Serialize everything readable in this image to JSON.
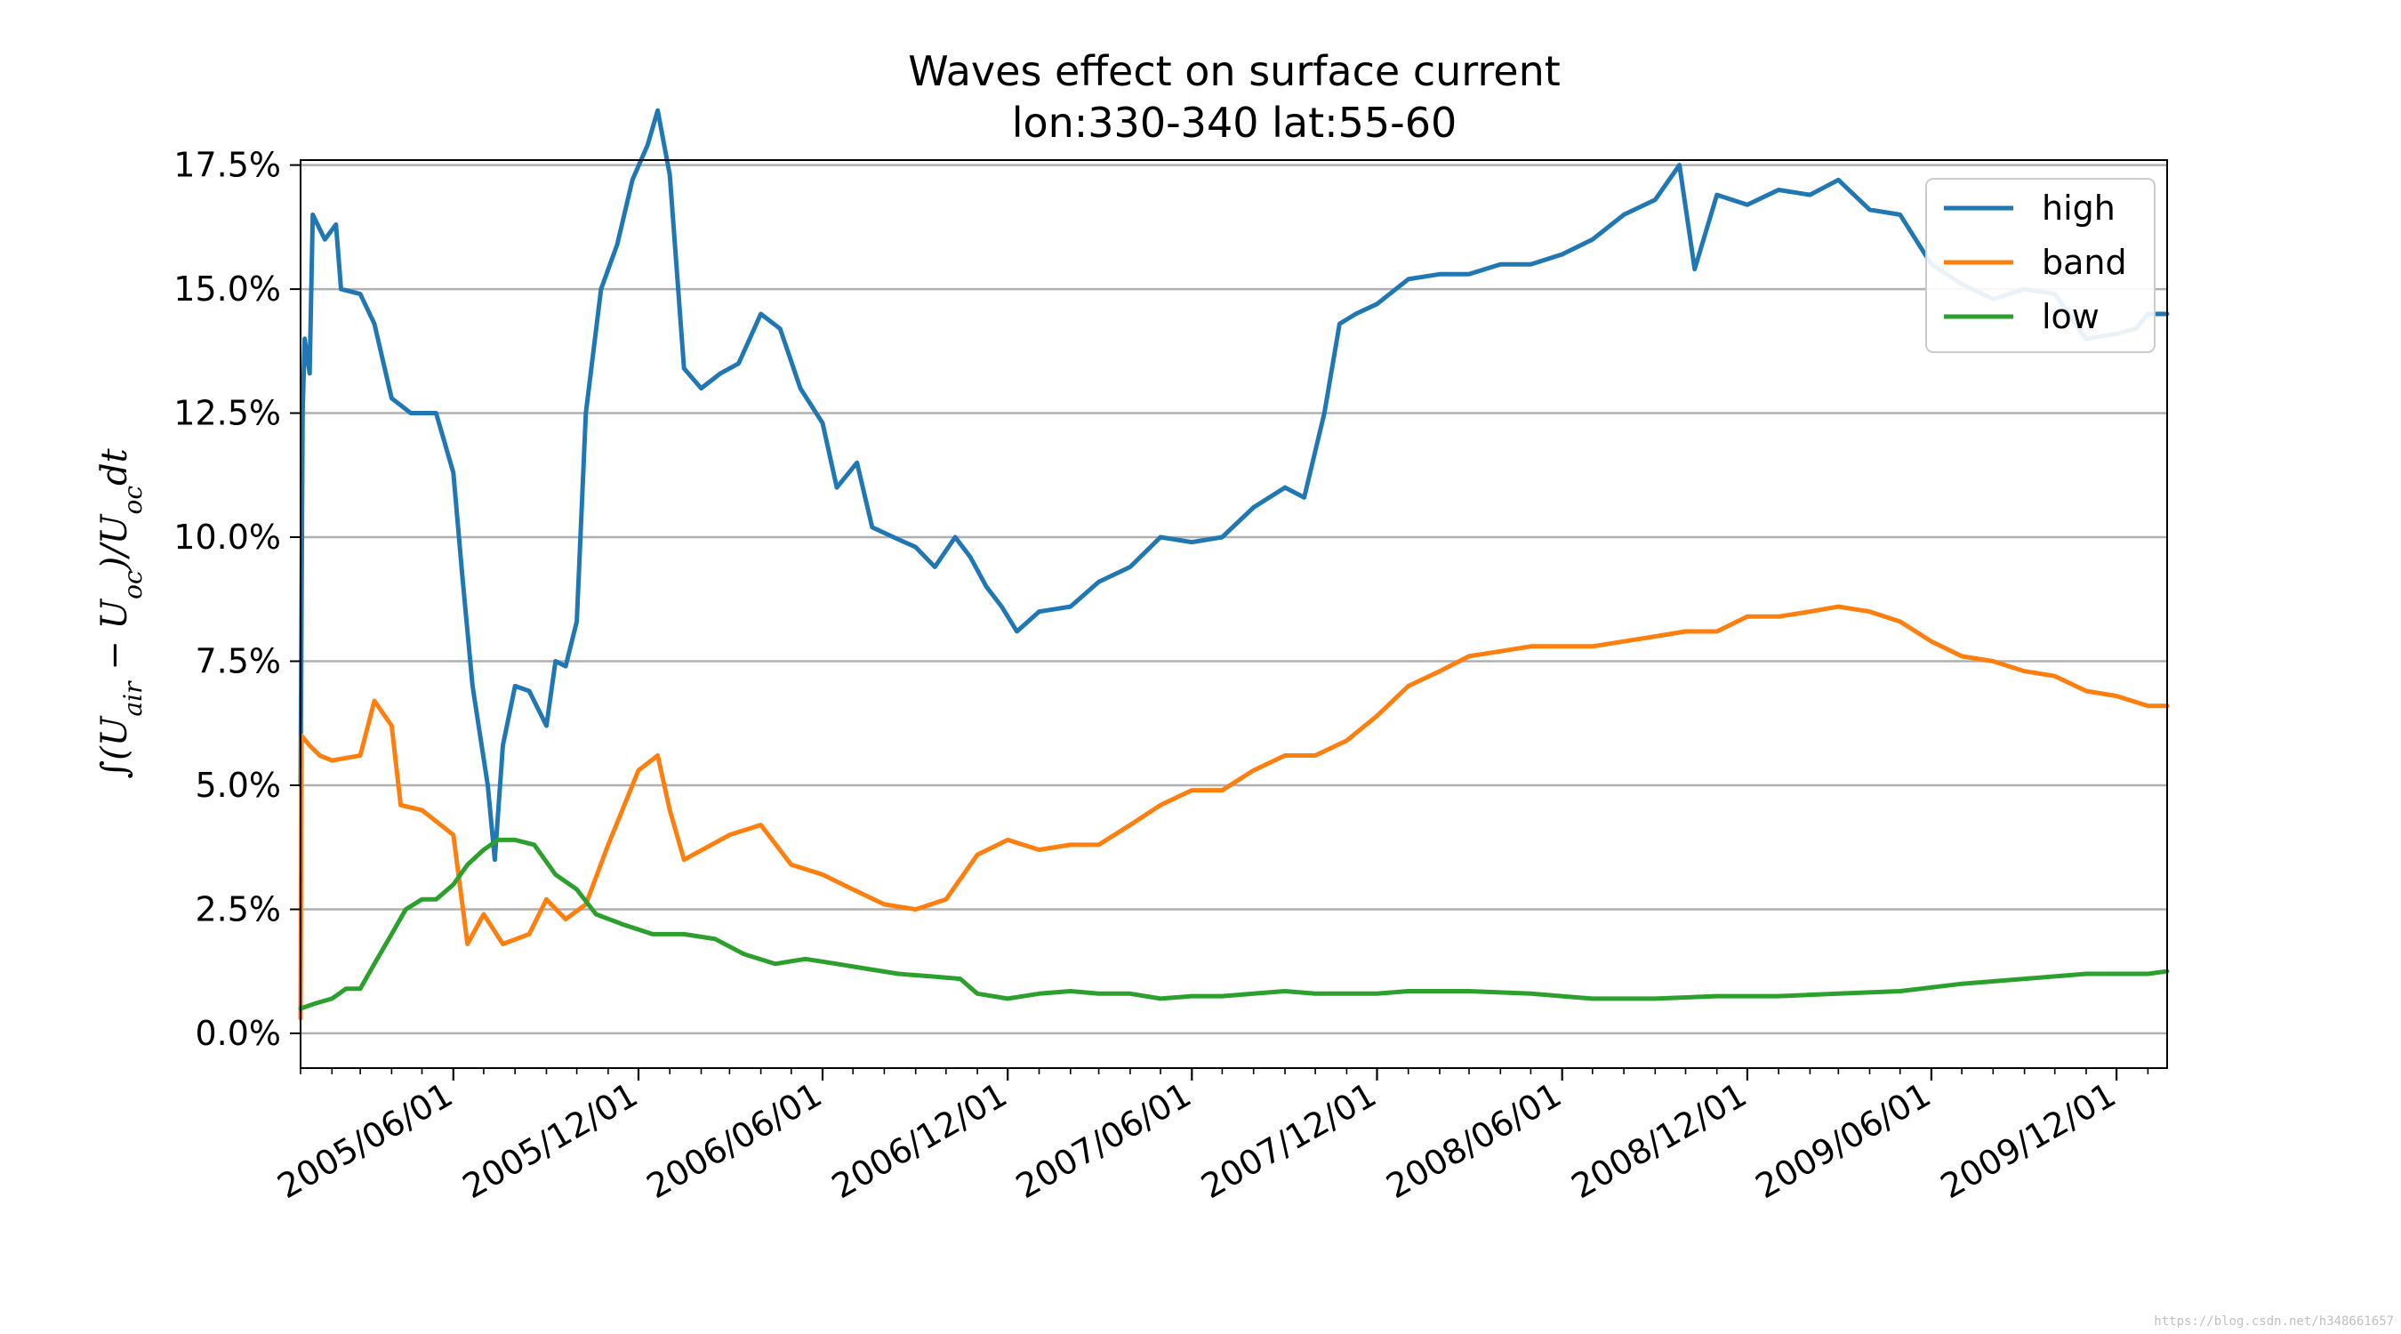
{
  "chart_data": {
    "type": "line",
    "title": "Waves effect on surface current",
    "subtitle": "lon:330-340 lat:55-60",
    "xlabel": "",
    "ylabel": "∫(U_air − U_oc)/U_oc dt",
    "ylabel_parts": {
      "integral": "∫(",
      "u1": "U",
      "sub1": "air",
      "minus": " − ",
      "u2": "U",
      "sub2": "oc",
      "close": ")/",
      "u3": "U",
      "sub3": "oc",
      "dt": "dt"
    },
    "x_range": [
      "2005-01-01",
      "2010-01-20"
    ],
    "y_range": [
      -0.7,
      17.6
    ],
    "y_unit": "%",
    "y_ticks": [
      0.0,
      2.5,
      5.0,
      7.5,
      10.0,
      12.5,
      15.0,
      17.5
    ],
    "y_tick_labels": [
      "0.0%",
      "2.5%",
      "5.0%",
      "7.5%",
      "10.0%",
      "12.5%",
      "15.0%",
      "17.5%"
    ],
    "x_ticks": [
      "2005-06-01",
      "2005-12-01",
      "2006-06-01",
      "2006-12-01",
      "2007-06-01",
      "2007-12-01",
      "2008-06-01",
      "2008-12-01",
      "2009-06-01",
      "2009-12-01"
    ],
    "x_tick_labels": [
      "2005/06/01",
      "2005/12/01",
      "2006/06/01",
      "2006/12/01",
      "2007/06/01",
      "2007/12/01",
      "2008/06/01",
      "2008/12/01",
      "2009/06/01",
      "2009/12/01"
    ],
    "grid": "horizontal",
    "legend_position": "top-right",
    "series": [
      {
        "name": "high",
        "color": "#1f77b4",
        "points": [
          [
            "2005-01-01",
            5.0
          ],
          [
            "2005-01-03",
            12.5
          ],
          [
            "2005-01-05",
            14.0
          ],
          [
            "2005-01-10",
            13.3
          ],
          [
            "2005-01-13",
            16.5
          ],
          [
            "2005-01-25",
            16.0
          ],
          [
            "2005-02-05",
            16.3
          ],
          [
            "2005-02-10",
            15.0
          ],
          [
            "2005-03-01",
            14.9
          ],
          [
            "2005-03-15",
            14.3
          ],
          [
            "2005-04-01",
            12.8
          ],
          [
            "2005-04-20",
            12.5
          ],
          [
            "2005-05-15",
            12.5
          ],
          [
            "2005-06-01",
            11.3
          ],
          [
            "2005-06-10",
            9.2
          ],
          [
            "2005-06-20",
            7.0
          ],
          [
            "2005-07-05",
            5.0
          ],
          [
            "2005-07-12",
            3.5
          ],
          [
            "2005-07-20",
            5.8
          ],
          [
            "2005-08-01",
            7.0
          ],
          [
            "2005-08-15",
            6.9
          ],
          [
            "2005-09-01",
            6.2
          ],
          [
            "2005-09-10",
            7.5
          ],
          [
            "2005-09-20",
            7.4
          ],
          [
            "2005-10-01",
            8.3
          ],
          [
            "2005-10-10",
            12.5
          ],
          [
            "2005-10-25",
            15.0
          ],
          [
            "2005-11-10",
            15.9
          ],
          [
            "2005-11-25",
            17.2
          ],
          [
            "2005-12-10",
            17.9
          ],
          [
            "2005-12-20",
            18.6
          ],
          [
            "2006-01-01",
            17.3
          ],
          [
            "2006-01-15",
            13.4
          ],
          [
            "2006-02-01",
            13.0
          ],
          [
            "2006-02-20",
            13.3
          ],
          [
            "2006-03-10",
            13.5
          ],
          [
            "2006-04-01",
            14.5
          ],
          [
            "2006-04-20",
            14.2
          ],
          [
            "2006-05-10",
            13.0
          ],
          [
            "2006-06-01",
            12.3
          ],
          [
            "2006-06-15",
            11.0
          ],
          [
            "2006-07-05",
            11.5
          ],
          [
            "2006-07-20",
            10.2
          ],
          [
            "2006-08-10",
            10.0
          ],
          [
            "2006-09-01",
            9.8
          ],
          [
            "2006-09-20",
            9.4
          ],
          [
            "2006-10-10",
            10.0
          ],
          [
            "2006-10-25",
            9.6
          ],
          [
            "2006-11-10",
            9.0
          ],
          [
            "2006-11-25",
            8.6
          ],
          [
            "2006-12-10",
            8.1
          ],
          [
            "2007-01-01",
            8.5
          ],
          [
            "2007-02-01",
            8.6
          ],
          [
            "2007-03-01",
            9.1
          ],
          [
            "2007-04-01",
            9.4
          ],
          [
            "2007-05-01",
            10.0
          ],
          [
            "2007-06-01",
            9.9
          ],
          [
            "2007-07-01",
            10.0
          ],
          [
            "2007-08-01",
            10.6
          ],
          [
            "2007-09-01",
            11.0
          ],
          [
            "2007-09-20",
            10.8
          ],
          [
            "2007-10-10",
            12.5
          ],
          [
            "2007-10-25",
            14.3
          ],
          [
            "2007-11-10",
            14.5
          ],
          [
            "2007-12-01",
            14.7
          ],
          [
            "2008-01-01",
            15.2
          ],
          [
            "2008-02-01",
            15.3
          ],
          [
            "2008-03-01",
            15.3
          ],
          [
            "2008-04-01",
            15.5
          ],
          [
            "2008-05-01",
            15.5
          ],
          [
            "2008-06-01",
            15.7
          ],
          [
            "2008-07-01",
            16.0
          ],
          [
            "2008-08-01",
            16.5
          ],
          [
            "2008-09-01",
            16.8
          ],
          [
            "2008-09-25",
            17.5
          ],
          [
            "2008-10-10",
            15.4
          ],
          [
            "2008-11-01",
            16.9
          ],
          [
            "2008-12-01",
            16.7
          ],
          [
            "2009-01-01",
            17.0
          ],
          [
            "2009-02-01",
            16.9
          ],
          [
            "2009-03-01",
            17.2
          ],
          [
            "2009-04-01",
            16.6
          ],
          [
            "2009-05-01",
            16.5
          ],
          [
            "2009-06-01",
            15.5
          ],
          [
            "2009-07-01",
            15.1
          ],
          [
            "2009-08-01",
            14.8
          ],
          [
            "2009-09-01",
            15.0
          ],
          [
            "2009-10-01",
            14.9
          ],
          [
            "2009-11-01",
            14.0
          ],
          [
            "2009-12-01",
            14.1
          ],
          [
            "2009-12-20",
            14.2
          ],
          [
            "2010-01-01",
            14.5
          ],
          [
            "2010-01-20",
            14.5
          ]
        ]
      },
      {
        "name": "band",
        "color": "#ff7f0e",
        "points": [
          [
            "2005-01-01",
            0.3
          ],
          [
            "2005-01-02",
            6.0
          ],
          [
            "2005-01-10",
            5.8
          ],
          [
            "2005-01-20",
            5.6
          ],
          [
            "2005-02-01",
            5.5
          ],
          [
            "2005-03-01",
            5.6
          ],
          [
            "2005-03-15",
            6.7
          ],
          [
            "2005-04-01",
            6.2
          ],
          [
            "2005-04-10",
            4.6
          ],
          [
            "2005-05-01",
            4.5
          ],
          [
            "2005-06-01",
            4.0
          ],
          [
            "2005-06-15",
            1.8
          ],
          [
            "2005-07-01",
            2.4
          ],
          [
            "2005-07-20",
            1.8
          ],
          [
            "2005-08-15",
            2.0
          ],
          [
            "2005-09-01",
            2.7
          ],
          [
            "2005-09-20",
            2.3
          ],
          [
            "2005-10-10",
            2.6
          ],
          [
            "2005-11-01",
            3.8
          ],
          [
            "2005-12-01",
            5.3
          ],
          [
            "2005-12-20",
            5.6
          ],
          [
            "2006-01-01",
            4.5
          ],
          [
            "2006-01-15",
            3.5
          ],
          [
            "2006-03-01",
            4.0
          ],
          [
            "2006-04-01",
            4.2
          ],
          [
            "2006-05-01",
            3.4
          ],
          [
            "2006-06-01",
            3.2
          ],
          [
            "2006-07-01",
            2.9
          ],
          [
            "2006-08-01",
            2.6
          ],
          [
            "2006-09-01",
            2.5
          ],
          [
            "2006-10-01",
            2.7
          ],
          [
            "2006-11-01",
            3.6
          ],
          [
            "2006-12-01",
            3.9
          ],
          [
            "2007-01-01",
            3.7
          ],
          [
            "2007-02-01",
            3.8
          ],
          [
            "2007-03-01",
            3.8
          ],
          [
            "2007-04-01",
            4.2
          ],
          [
            "2007-05-01",
            4.6
          ],
          [
            "2007-06-01",
            4.9
          ],
          [
            "2007-07-01",
            4.9
          ],
          [
            "2007-08-01",
            5.3
          ],
          [
            "2007-09-01",
            5.6
          ],
          [
            "2007-10-01",
            5.6
          ],
          [
            "2007-11-01",
            5.9
          ],
          [
            "2007-12-01",
            6.4
          ],
          [
            "2008-01-01",
            7.0
          ],
          [
            "2008-02-01",
            7.3
          ],
          [
            "2008-03-01",
            7.6
          ],
          [
            "2008-04-01",
            7.7
          ],
          [
            "2008-05-01",
            7.8
          ],
          [
            "2008-06-01",
            7.8
          ],
          [
            "2008-07-01",
            7.8
          ],
          [
            "2008-08-01",
            7.9
          ],
          [
            "2008-09-01",
            8.0
          ],
          [
            "2008-10-01",
            8.1
          ],
          [
            "2008-11-01",
            8.1
          ],
          [
            "2008-12-01",
            8.4
          ],
          [
            "2009-01-01",
            8.4
          ],
          [
            "2009-02-01",
            8.5
          ],
          [
            "2009-03-01",
            8.6
          ],
          [
            "2009-04-01",
            8.5
          ],
          [
            "2009-05-01",
            8.3
          ],
          [
            "2009-06-01",
            7.9
          ],
          [
            "2009-07-01",
            7.6
          ],
          [
            "2009-08-01",
            7.5
          ],
          [
            "2009-09-01",
            7.3
          ],
          [
            "2009-10-01",
            7.2
          ],
          [
            "2009-11-01",
            6.9
          ],
          [
            "2009-12-01",
            6.8
          ],
          [
            "2010-01-01",
            6.6
          ],
          [
            "2010-01-20",
            6.6
          ]
        ]
      },
      {
        "name": "low",
        "color": "#2ca02c",
        "points": [
          [
            "2005-01-01",
            0.5
          ],
          [
            "2005-01-15",
            0.6
          ],
          [
            "2005-02-01",
            0.7
          ],
          [
            "2005-02-15",
            0.9
          ],
          [
            "2005-03-01",
            0.9
          ],
          [
            "2005-03-15",
            1.4
          ],
          [
            "2005-04-01",
            2.0
          ],
          [
            "2005-04-15",
            2.5
          ],
          [
            "2005-05-01",
            2.7
          ],
          [
            "2005-05-15",
            2.7
          ],
          [
            "2005-06-01",
            3.0
          ],
          [
            "2005-06-15",
            3.4
          ],
          [
            "2005-07-01",
            3.7
          ],
          [
            "2005-07-15",
            3.9
          ],
          [
            "2005-08-01",
            3.9
          ],
          [
            "2005-08-20",
            3.8
          ],
          [
            "2005-09-10",
            3.2
          ],
          [
            "2005-10-01",
            2.9
          ],
          [
            "2005-10-20",
            2.4
          ],
          [
            "2005-11-15",
            2.2
          ],
          [
            "2005-12-15",
            2.0
          ],
          [
            "2006-01-15",
            2.0
          ],
          [
            "2006-02-15",
            1.9
          ],
          [
            "2006-03-15",
            1.6
          ],
          [
            "2006-04-15",
            1.4
          ],
          [
            "2006-05-15",
            1.5
          ],
          [
            "2006-06-15",
            1.4
          ],
          [
            "2006-07-15",
            1.3
          ],
          [
            "2006-08-15",
            1.2
          ],
          [
            "2006-09-15",
            1.15
          ],
          [
            "2006-10-15",
            1.1
          ],
          [
            "2006-11-01",
            0.8
          ],
          [
            "2006-12-01",
            0.7
          ],
          [
            "2007-01-01",
            0.8
          ],
          [
            "2007-02-01",
            0.85
          ],
          [
            "2007-03-01",
            0.8
          ],
          [
            "2007-04-01",
            0.8
          ],
          [
            "2007-05-01",
            0.7
          ],
          [
            "2007-06-01",
            0.75
          ],
          [
            "2007-07-01",
            0.75
          ],
          [
            "2007-08-01",
            0.8
          ],
          [
            "2007-09-01",
            0.85
          ],
          [
            "2007-10-01",
            0.8
          ],
          [
            "2007-11-01",
            0.8
          ],
          [
            "2007-12-01",
            0.8
          ],
          [
            "2008-01-01",
            0.85
          ],
          [
            "2008-03-01",
            0.85
          ],
          [
            "2008-05-01",
            0.8
          ],
          [
            "2008-07-01",
            0.7
          ],
          [
            "2008-09-01",
            0.7
          ],
          [
            "2008-11-01",
            0.75
          ],
          [
            "2009-01-01",
            0.75
          ],
          [
            "2009-03-01",
            0.8
          ],
          [
            "2009-05-01",
            0.85
          ],
          [
            "2009-07-01",
            1.0
          ],
          [
            "2009-09-01",
            1.1
          ],
          [
            "2009-11-01",
            1.2
          ],
          [
            "2010-01-01",
            1.2
          ],
          [
            "2010-01-20",
            1.25
          ]
        ]
      }
    ]
  },
  "watermark": "https://blog.csdn.net/h348661657"
}
